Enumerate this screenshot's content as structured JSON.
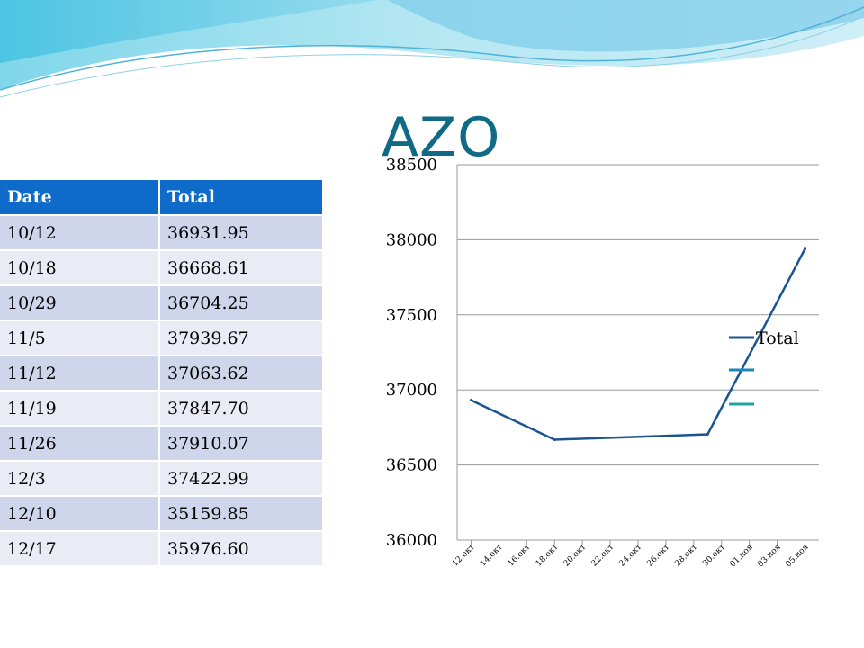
{
  "title": "AZO",
  "table": {
    "headers": [
      "Date",
      "Total"
    ],
    "rows": [
      [
        "10/12",
        "36931.95"
      ],
      [
        "10/18",
        "36668.61"
      ],
      [
        "10/29",
        "36704.25"
      ],
      [
        "11/5",
        "37939.67"
      ],
      [
        "11/12",
        "37063.62"
      ],
      [
        "11/19",
        "37847.70"
      ],
      [
        "11/26",
        "37910.07"
      ],
      [
        "12/3",
        "37422.99"
      ],
      [
        "12/10",
        "35159.85"
      ],
      [
        "12/17",
        "35976.60"
      ]
    ]
  },
  "chart_data": {
    "type": "line",
    "x_dates": [
      "12.окт",
      "18.окт",
      "29.окт",
      "05.ноя"
    ],
    "series": [
      {
        "name": "Total",
        "values": [
          36931.95,
          36668.61,
          36704.25,
          37939.67
        ],
        "color": "#1a5592"
      }
    ],
    "legend_extra_colors": [
      "#1f86b8",
      "#22a3a3"
    ],
    "xtick_labels": [
      "12.окт",
      "14.окт",
      "16.окт",
      "18.окт",
      "20.окт",
      "22.окт",
      "24.окт",
      "26.окт",
      "28.окт",
      "30.окт",
      "01.ноя",
      "03.ноя",
      "05.ноя"
    ],
    "yticks": [
      36000,
      36500,
      37000,
      37500,
      38000,
      38500
    ],
    "ylim": [
      36000,
      38500
    ],
    "grid": true,
    "legend_position": "right"
  }
}
